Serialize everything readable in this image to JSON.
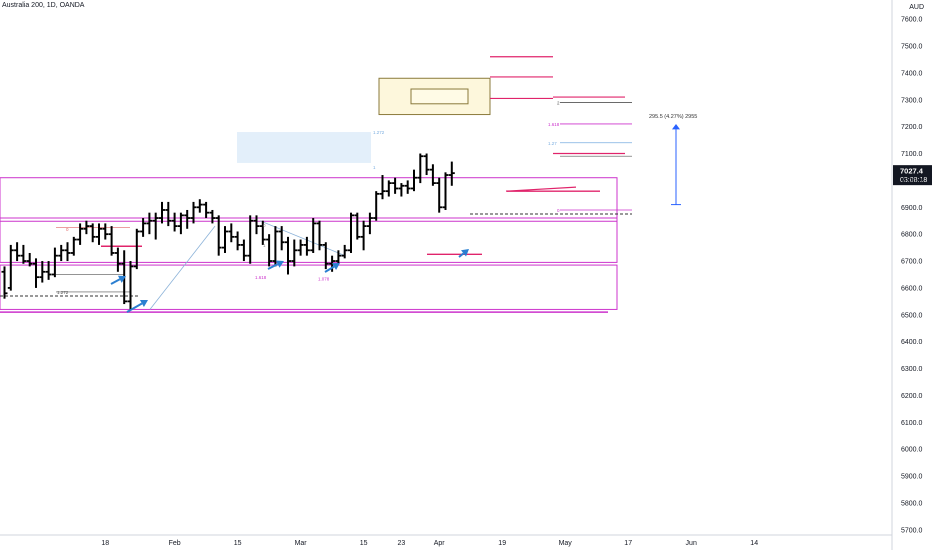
{
  "chart_data": {
    "type": "ohlc",
    "title": "Australia 200, 1D, OANDA",
    "currency": "AUD",
    "ylim": [
      5625,
      7660
    ],
    "y_ticks": [
      7600,
      7500,
      7400,
      7300,
      7200,
      7100,
      7000,
      6900,
      6800,
      6700,
      6600,
      6500,
      6400,
      6300,
      6200,
      6100,
      6000,
      5900,
      5800,
      5700
    ],
    "x_labels": [
      {
        "label": "18",
        "bar": 16
      },
      {
        "label": "Feb",
        "bar": 27
      },
      {
        "label": "15",
        "bar": 37
      },
      {
        "label": "Mar",
        "bar": 47
      },
      {
        "label": "15",
        "bar": 57
      },
      {
        "label": "23",
        "bar": 63
      },
      {
        "label": "Apr",
        "bar": 69
      },
      {
        "label": "19",
        "bar": 79
      },
      {
        "label": "May",
        "bar": 89
      },
      {
        "label": "17",
        "bar": 99
      },
      {
        "label": "Jun",
        "bar": 109
      },
      {
        "label": "14",
        "bar": 119
      }
    ],
    "last_price": "7027.4",
    "countdown": "03:08:18",
    "accent_color": "#cc33cc",
    "candles": [
      [
        6660,
        6680,
        6560,
        6580
      ],
      [
        6600,
        6760,
        6590,
        6740
      ],
      [
        6740,
        6770,
        6700,
        6720
      ],
      [
        6720,
        6760,
        6690,
        6700
      ],
      [
        6700,
        6730,
        6680,
        6690
      ],
      [
        6690,
        6710,
        6600,
        6640
      ],
      [
        6640,
        6700,
        6620,
        6660
      ],
      [
        6660,
        6700,
        6630,
        6650
      ],
      [
        6650,
        6750,
        6640,
        6720
      ],
      [
        6720,
        6760,
        6700,
        6740
      ],
      [
        6740,
        6770,
        6700,
        6730
      ],
      [
        6730,
        6790,
        6720,
        6780
      ],
      [
        6780,
        6840,
        6760,
        6820
      ],
      [
        6820,
        6850,
        6800,
        6830
      ],
      [
        6830,
        6840,
        6770,
        6790
      ],
      [
        6790,
        6840,
        6760,
        6820
      ],
      [
        6820,
        6840,
        6780,
        6800
      ],
      [
        6800,
        6830,
        6720,
        6730
      ],
      [
        6730,
        6750,
        6660,
        6690
      ],
      [
        6690,
        6740,
        6540,
        6550
      ],
      [
        6550,
        6700,
        6520,
        6680
      ],
      [
        6680,
        6820,
        6670,
        6810
      ],
      [
        6810,
        6860,
        6790,
        6840
      ],
      [
        6840,
        6880,
        6800,
        6850
      ],
      [
        6850,
        6880,
        6780,
        6860
      ],
      [
        6860,
        6920,
        6840,
        6890
      ],
      [
        6890,
        6920,
        6830,
        6850
      ],
      [
        6850,
        6880,
        6810,
        6830
      ],
      [
        6830,
        6880,
        6800,
        6870
      ],
      [
        6870,
        6890,
        6820,
        6860
      ],
      [
        6860,
        6920,
        6840,
        6900
      ],
      [
        6900,
        6930,
        6880,
        6910
      ],
      [
        6910,
        6920,
        6860,
        6880
      ],
      [
        6880,
        6890,
        6840,
        6860
      ],
      [
        6860,
        6870,
        6720,
        6750
      ],
      [
        6750,
        6830,
        6730,
        6810
      ],
      [
        6810,
        6840,
        6770,
        6790
      ],
      [
        6790,
        6810,
        6740,
        6760
      ],
      [
        6760,
        6780,
        6700,
        6720
      ],
      [
        6720,
        6870,
        6690,
        6850
      ],
      [
        6850,
        6870,
        6800,
        6830
      ],
      [
        6830,
        6850,
        6760,
        6780
      ],
      [
        6780,
        6800,
        6680,
        6700
      ],
      [
        6700,
        6830,
        6680,
        6810
      ],
      [
        6810,
        6830,
        6740,
        6770
      ],
      [
        6770,
        6790,
        6650,
        6700
      ],
      [
        6700,
        6780,
        6680,
        6740
      ],
      [
        6740,
        6780,
        6720,
        6760
      ],
      [
        6760,
        6790,
        6720,
        6740
      ],
      [
        6740,
        6860,
        6730,
        6840
      ],
      [
        6840,
        6850,
        6740,
        6760
      ],
      [
        6760,
        6770,
        6670,
        6690
      ],
      [
        6690,
        6720,
        6660,
        6700
      ],
      [
        6700,
        6740,
        6690,
        6720
      ],
      [
        6720,
        6760,
        6710,
        6740
      ],
      [
        6740,
        6880,
        6730,
        6870
      ],
      [
        6870,
        6880,
        6780,
        6790
      ],
      [
        6790,
        6850,
        6740,
        6830
      ],
      [
        6830,
        6880,
        6800,
        6860
      ],
      [
        6860,
        6960,
        6850,
        6950
      ],
      [
        6950,
        7020,
        6930,
        6960
      ],
      [
        6960,
        7000,
        6940,
        6990
      ],
      [
        6990,
        7010,
        6950,
        6970
      ],
      [
        6970,
        6990,
        6940,
        6980
      ],
      [
        6980,
        7000,
        6950,
        6970
      ],
      [
        6970,
        7040,
        6960,
        7010
      ],
      [
        7010,
        7100,
        6990,
        7090
      ],
      [
        7090,
        7100,
        7020,
        7040
      ],
      [
        7040,
        7060,
        6980,
        6990
      ],
      [
        6990,
        7010,
        6880,
        6900
      ],
      [
        6900,
        7030,
        6890,
        7020
      ],
      [
        7020,
        7070,
        6980,
        7027
      ]
    ],
    "levels": [
      {
        "label": "0",
        "value": 6820,
        "color": "#e06666"
      },
      {
        "label": "1.272",
        "value": 6580,
        "color": "#555555"
      },
      {
        "label": "0",
        "value": 6835,
        "color": "#888888"
      },
      {
        "label": "1",
        "value": 6760,
        "color": "#888888"
      },
      {
        "label": "1.618",
        "value": 6640,
        "color": "#cc33cc"
      },
      {
        "label": "1.078",
        "value": 6635,
        "color": "#cc33cc"
      },
      {
        "label": "1.272",
        "value": 7180,
        "color": "#7baee0"
      },
      {
        "label": "1",
        "value": 7050,
        "color": "#7baee0"
      },
      {
        "label": "2",
        "value": 7290,
        "color": "#555555"
      },
      {
        "label": "1.618",
        "value": 7210,
        "color": "#cc33cc"
      },
      {
        "label": "1.27",
        "value": 7140,
        "color": "#7baee0"
      },
      {
        "label": "0",
        "value": 6890,
        "color": "#cc33cc"
      }
    ],
    "measure_label": "295.5 (4.27%) 2955"
  }
}
